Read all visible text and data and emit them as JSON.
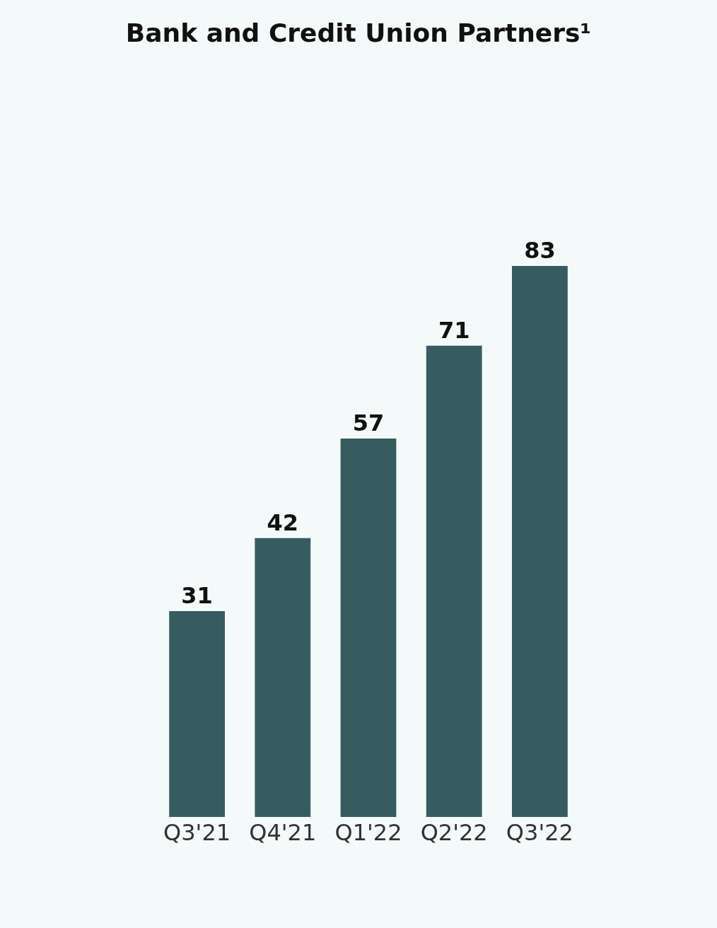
{
  "chart_data": {
    "type": "bar",
    "title": "Bank and Credit Union Partners¹",
    "categories": [
      "Q3'21",
      "Q4'21",
      "Q1'22",
      "Q2'22",
      "Q3'22"
    ],
    "values": [
      31,
      42,
      57,
      71,
      83
    ],
    "color": "#365c5f",
    "data_labels": true,
    "grid": false,
    "legend": false
  }
}
